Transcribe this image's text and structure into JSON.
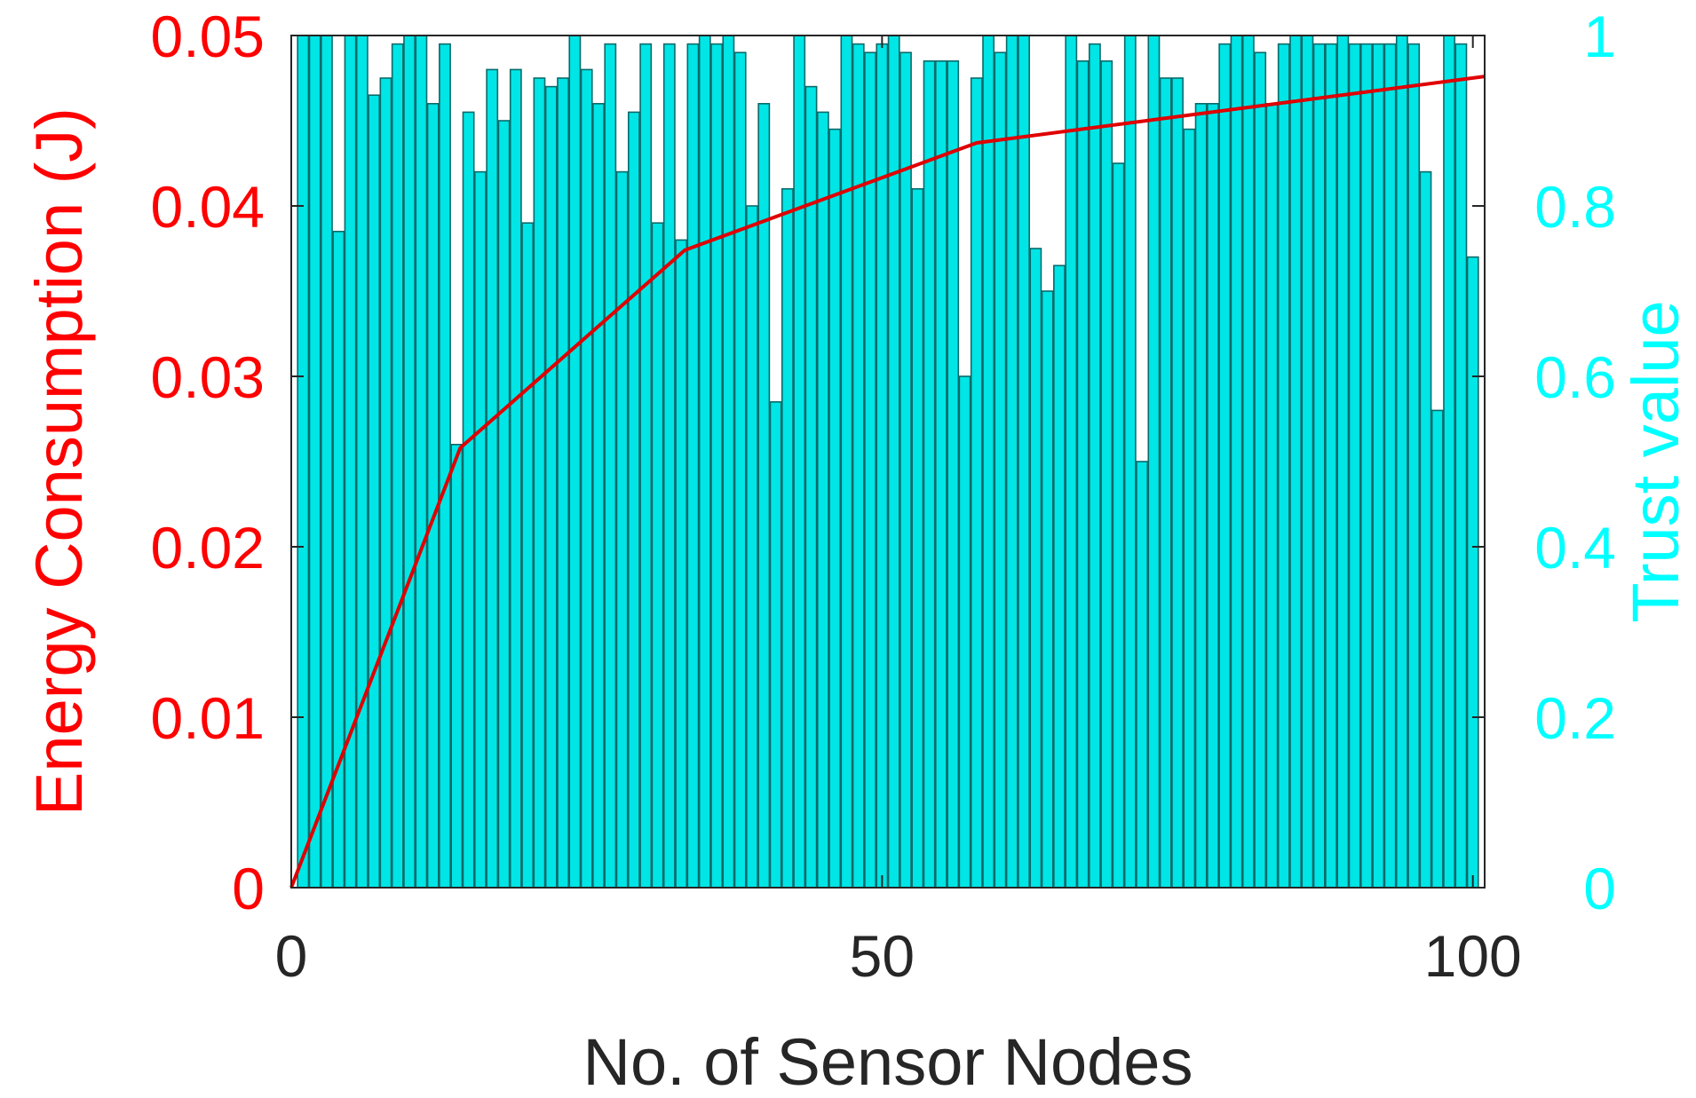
{
  "chart_data": {
    "type": "bar",
    "xlabel": "No. of Sensor Nodes",
    "ylabel_left": "Energy Consumption (J)",
    "ylabel_right": "Trust value",
    "xlim": [
      0,
      101
    ],
    "xticks": [
      "0",
      "50",
      "100"
    ],
    "ylim_left": [
      0,
      0.05
    ],
    "yticks_left": [
      "0",
      "0.01",
      "0.02",
      "0.03",
      "0.04",
      "0.05"
    ],
    "ylim_right": [
      0,
      1
    ],
    "yticks_right": [
      "0",
      "0.2",
      "0.4",
      "0.6",
      "0.8",
      "1"
    ],
    "colors": {
      "bar_fill": "#00e5e5",
      "bar_edge": "#0a6a6a",
      "line": "#e00000",
      "left_axis": "#ff0000",
      "right_axis": "#00ffff",
      "x_axis": "#262626"
    },
    "series": [
      {
        "kind": "bar",
        "axis": "right",
        "x": [
          1,
          2,
          3,
          4,
          5,
          6,
          7,
          8,
          9,
          10,
          11,
          12,
          13,
          14,
          15,
          16,
          17,
          18,
          19,
          20,
          21,
          22,
          23,
          24,
          25,
          26,
          27,
          28,
          29,
          30,
          31,
          32,
          33,
          34,
          35,
          36,
          37,
          38,
          39,
          40,
          41,
          42,
          43,
          44,
          45,
          46,
          47,
          48,
          49,
          50,
          51,
          52,
          53,
          54,
          55,
          56,
          57,
          58,
          59,
          60,
          61,
          62,
          63,
          64,
          65,
          66,
          67,
          68,
          69,
          70,
          71,
          72,
          73,
          74,
          75,
          76,
          77,
          78,
          79,
          80,
          81,
          82,
          83,
          84,
          85,
          86,
          87,
          88,
          89,
          90,
          91,
          92,
          93,
          94,
          95,
          96,
          97,
          98,
          99,
          100
        ],
        "values": [
          1.0,
          1.0,
          1.0,
          0.77,
          1.0,
          1.0,
          0.93,
          0.95,
          0.99,
          1.0,
          1.0,
          0.92,
          0.99,
          0.52,
          0.91,
          0.84,
          0.96,
          0.9,
          0.96,
          0.78,
          0.95,
          0.94,
          0.95,
          1.0,
          0.96,
          0.92,
          0.99,
          0.84,
          0.91,
          0.99,
          0.78,
          0.99,
          0.76,
          0.99,
          1.0,
          0.99,
          1.0,
          0.98,
          0.8,
          0.92,
          0.57,
          0.82,
          1.0,
          0.94,
          0.91,
          0.89,
          1.0,
          0.99,
          0.98,
          0.99,
          1.0,
          0.98,
          0.82,
          0.97,
          0.97,
          0.97,
          0.6,
          0.95,
          1.0,
          0.98,
          1.0,
          1.0,
          0.75,
          0.7,
          0.73,
          1.0,
          0.97,
          0.99,
          0.97,
          0.85,
          1.0,
          0.5,
          1.0,
          0.95,
          0.95,
          0.89,
          0.92,
          0.92,
          0.99,
          1.0,
          1.0,
          0.98,
          0.92,
          0.99,
          1.0,
          1.0,
          0.99,
          0.99,
          1.0,
          0.99,
          0.99,
          0.99,
          0.99,
          1.0,
          0.99,
          0.84,
          0.56,
          1.0,
          0.99,
          0.74
        ]
      },
      {
        "kind": "line",
        "axis": "left",
        "x": [
          0,
          14.3,
          33.3,
          58,
          101
        ],
        "values": [
          0,
          0.0258,
          0.0374,
          0.0437,
          0.0476
        ]
      }
    ]
  }
}
